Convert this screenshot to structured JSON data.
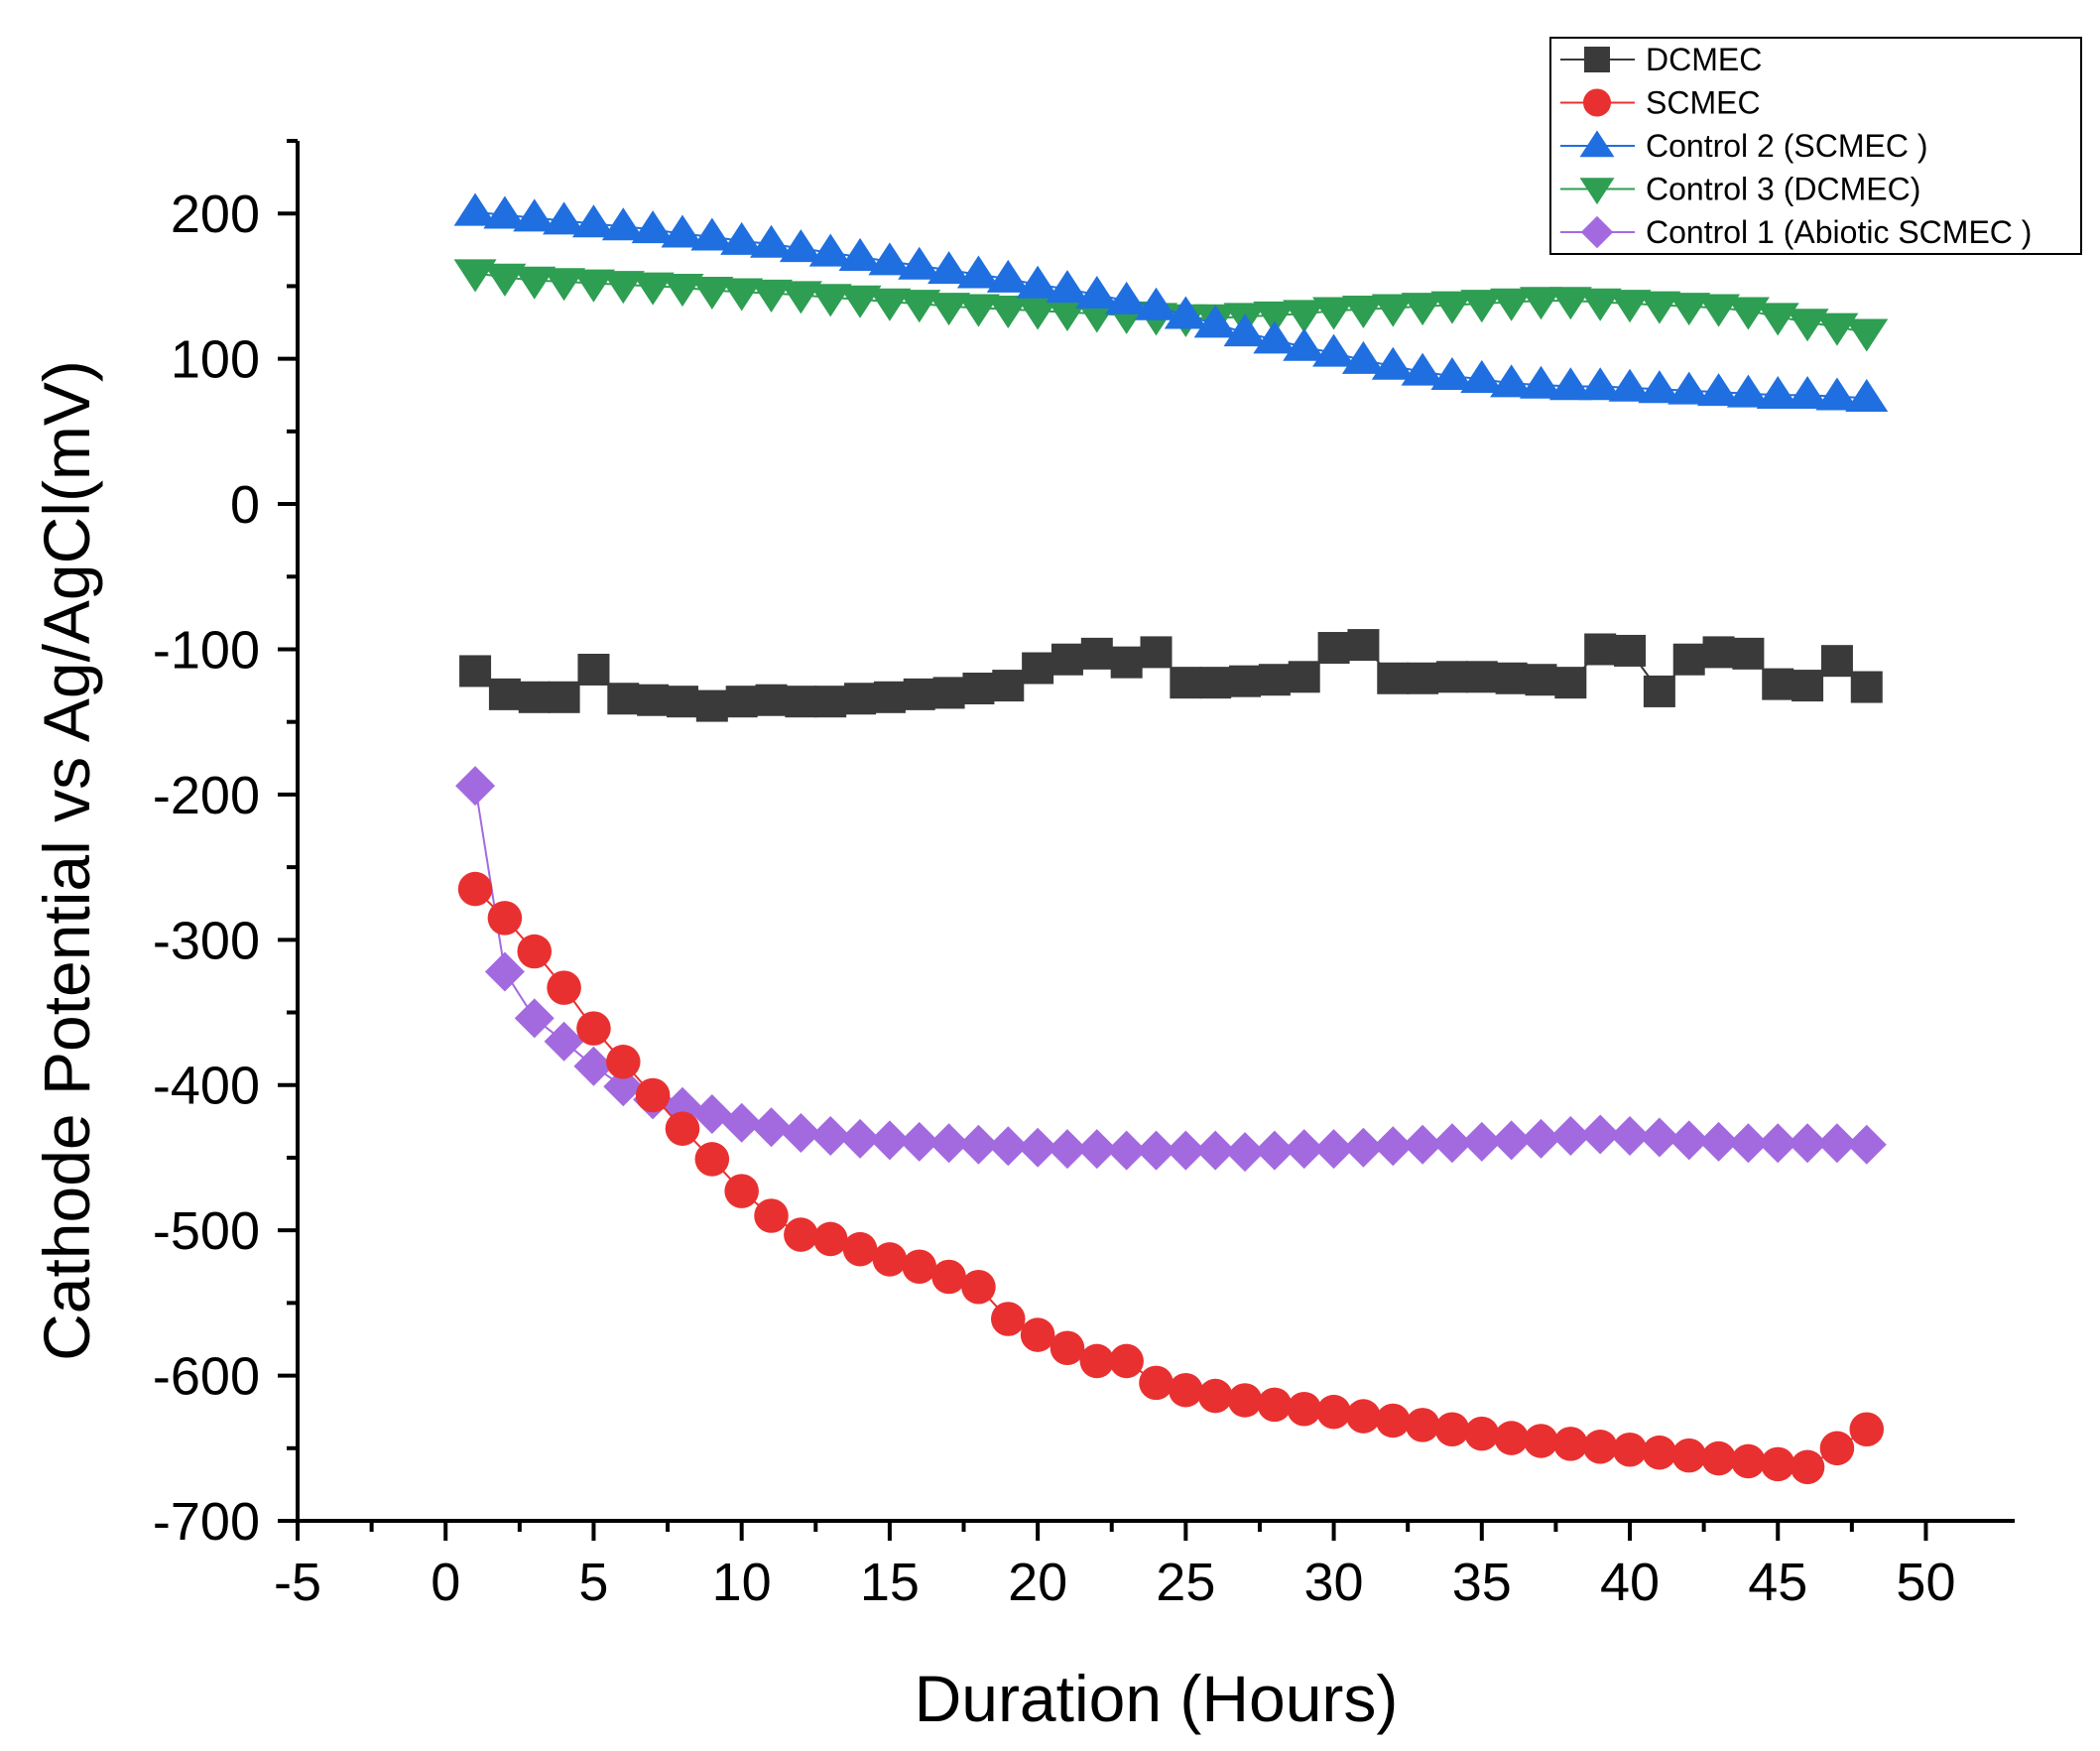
{
  "chart_data": {
    "type": "scatter",
    "title": "",
    "xlabel": "Duration (Hours)",
    "ylabel": "Cathode Potential vs Ag/AgCl(mV)",
    "xlim": [
      -5,
      53
    ],
    "ylim": [
      -700,
      250
    ],
    "xticks": [
      -5,
      0,
      5,
      10,
      15,
      20,
      25,
      30,
      35,
      40,
      45,
      50
    ],
    "yticks": [
      -700,
      -600,
      -500,
      -400,
      -300,
      -200,
      -100,
      0,
      100,
      200
    ],
    "xtick_labels": [
      "-5",
      "0",
      "5",
      "10",
      "15",
      "20",
      "25",
      "30",
      "35",
      "40",
      "45",
      "50"
    ],
    "ytick_labels": [
      "-700",
      "-600",
      "-500",
      "-400",
      "-300",
      "-200",
      "-100",
      "0",
      "100",
      "200"
    ],
    "grid": false,
    "legend_position": "top-right",
    "x": [
      1,
      2,
      3,
      4,
      5,
      6,
      7,
      8,
      9,
      10,
      11,
      12,
      13,
      14,
      15,
      16,
      17,
      18,
      19,
      20,
      21,
      22,
      23,
      24,
      25,
      26,
      27,
      28,
      29,
      30,
      31,
      32,
      33,
      34,
      35,
      36,
      37,
      38,
      39,
      40,
      41,
      42,
      43,
      44,
      45,
      46,
      47,
      48
    ],
    "series": [
      {
        "name": "DCMEC",
        "color": "#3a3a3a",
        "marker": "square",
        "values": [
          -115,
          -131,
          -133,
          -133,
          -114,
          -134,
          -135,
          -136,
          -139,
          -136,
          -135,
          -136,
          -136,
          -134,
          -133,
          -131,
          -130,
          -127,
          -125,
          -113,
          -107,
          -103,
          -109,
          -102,
          -123,
          -123,
          -122,
          -121,
          -119,
          -99,
          -97,
          -120,
          -120,
          -119,
          -119,
          -120,
          -121,
          -123,
          -100,
          -101,
          -129,
          -107,
          -102,
          -103,
          -124,
          -125,
          -108,
          -126
        ]
      },
      {
        "name": "SCMEC",
        "color": "#e93030",
        "marker": "circle",
        "values": [
          -265,
          -285,
          -308,
          -333,
          -361,
          -384,
          -407,
          -430,
          -451,
          -473,
          -490,
          -503,
          -506,
          -513,
          -520,
          -525,
          -532,
          -539,
          -561,
          -572,
          -581,
          -590,
          -590,
          -605,
          -610,
          -614,
          -617,
          -620,
          -623,
          -625,
          -628,
          -631,
          -634,
          -637,
          -640,
          -643,
          -645,
          -647,
          -649,
          -651,
          -653,
          -655,
          -657,
          -659,
          -661,
          -663,
          -650,
          -637
        ]
      },
      {
        "name": "Control 2 (SCMEC )",
        "color": "#1f6fe0",
        "marker": "triangle-up",
        "values": [
          201,
          199,
          197,
          195,
          193,
          191,
          189,
          186,
          184,
          181,
          179,
          176,
          173,
          170,
          167,
          164,
          161,
          158,
          155,
          151,
          148,
          144,
          140,
          136,
          130,
          124,
          118,
          113,
          108,
          104,
          99,
          95,
          91,
          88,
          86,
          83,
          82,
          81,
          81,
          80,
          79,
          78,
          77,
          76,
          75,
          75,
          74,
          73
        ]
      },
      {
        "name": "Control 3 (DCMEC)",
        "color": "#2e9e52",
        "marker": "triangle-down",
        "values": [
          159,
          156,
          154,
          153,
          152,
          151,
          150,
          149,
          147,
          146,
          145,
          144,
          142,
          141,
          139,
          138,
          136,
          135,
          134,
          133,
          132,
          131,
          130,
          129,
          128,
          128,
          129,
          130,
          131,
          133,
          134,
          135,
          136,
          137,
          138,
          139,
          140,
          140,
          139,
          138,
          137,
          136,
          135,
          133,
          129,
          125,
          122,
          118
        ]
      },
      {
        "name": "Control 1 (Abiotic SCMEC )",
        "color": "#a36ae0",
        "marker": "diamond",
        "values": [
          -194,
          -322,
          -354,
          -370,
          -387,
          -401,
          -410,
          -415,
          -420,
          -426,
          -429,
          -433,
          -435,
          -437,
          -438,
          -439,
          -440,
          -441,
          -442,
          -443,
          -444,
          -444,
          -445,
          -445,
          -445,
          -445,
          -446,
          -445,
          -444,
          -444,
          -443,
          -442,
          -441,
          -440,
          -439,
          -438,
          -437,
          -435,
          -434,
          -435,
          -436,
          -438,
          -439,
          -440,
          -440,
          -440,
          -440,
          -441
        ]
      }
    ]
  }
}
